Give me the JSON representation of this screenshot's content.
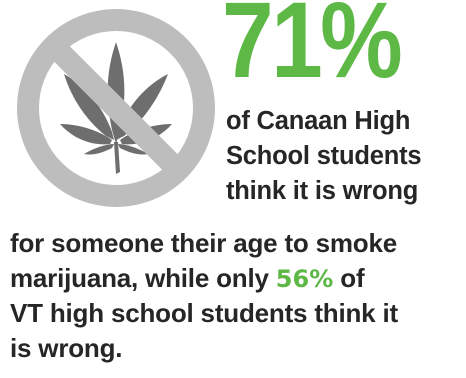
{
  "icon": {
    "name": "no-marijuana-icon",
    "ring_color": "#bdbdbd",
    "leaf_color": "#6e6e6e"
  },
  "stat_primary": "71%",
  "side_text": {
    "lines": [
      "of Canaan High",
      "School students",
      "think it is wrong"
    ]
  },
  "body_text": {
    "line1": "for someone their age to smoke",
    "line2_before": "marijuana, while only",
    "stat_secondary": "56%",
    "line2_after": "of",
    "line3": "VT high school students think it",
    "line4": "is wrong."
  },
  "colors": {
    "accent_green": "#5db846",
    "text_dark": "#262626"
  }
}
